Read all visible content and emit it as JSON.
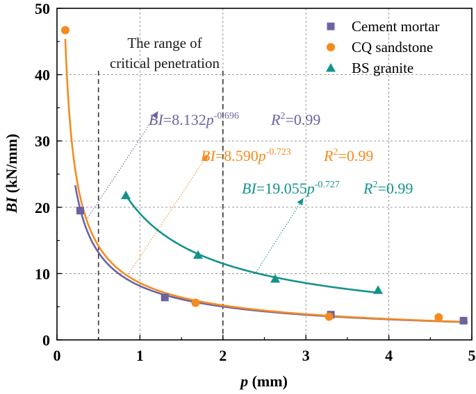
{
  "chart_data": {
    "type": "scatter",
    "xlabel": "p (mm)",
    "xlabel_var": "p",
    "xlabel_unit": " (mm)",
    "ylabel": "BI (kN/mm)",
    "ylabel_var": "BI",
    "ylabel_unit": " (kN/mm)",
    "xlim": [
      0,
      5
    ],
    "ylim": [
      0,
      50
    ],
    "xticks": [
      "0",
      "1",
      "2",
      "3",
      "4",
      "5"
    ],
    "yticks": [
      "0",
      "10",
      "20",
      "30",
      "40",
      "50"
    ],
    "grid": true,
    "legend_position": "top-right",
    "annotation_range_line1": "The range of",
    "annotation_range_line2": "critical penetration",
    "critical_range": [
      0.5,
      2.0
    ],
    "series": [
      {
        "name": "Cement mortar",
        "marker": "square",
        "color": "#6b63a3",
        "points": [
          [
            0.28,
            19.5
          ],
          [
            1.3,
            6.4
          ],
          [
            3.3,
            3.8
          ],
          [
            4.9,
            2.9
          ]
        ],
        "fit": {
          "a": 8.132,
          "b": -0.696,
          "x_range": [
            0.22,
            4.95
          ]
        },
        "equation": {
          "lhs": "BI",
          "eq": "=",
          "coef": "8.132",
          "var": "p",
          "exp": "-0.696",
          "r_label": "R",
          "r_sup": "2",
          "r_val": "=0.99"
        }
      },
      {
        "name": "CQ sandstone",
        "marker": "circle",
        "color": "#f58b1f",
        "points": [
          [
            0.1,
            46.7
          ],
          [
            1.67,
            5.6
          ],
          [
            3.28,
            3.5
          ],
          [
            4.6,
            3.4
          ]
        ],
        "fit": {
          "a": 8.59,
          "b": -0.723,
          "x_range": [
            0.1,
            4.95
          ]
        },
        "equation": {
          "lhs": "BI",
          "eq": "=",
          "coef": "8.590",
          "var": "p",
          "exp": "-0.723",
          "r_label": "R",
          "r_sup": "2",
          "r_val": "=0.99"
        }
      },
      {
        "name": "BS granite",
        "marker": "triangle",
        "color": "#14938a",
        "points": [
          [
            0.83,
            21.8
          ],
          [
            1.7,
            12.8
          ],
          [
            2.63,
            9.2
          ],
          [
            3.87,
            7.5
          ]
        ],
        "fit": {
          "a": 19.055,
          "b": -0.727,
          "x_range": [
            0.83,
            3.87
          ]
        },
        "equation": {
          "lhs": "BI",
          "eq": "=",
          "coef": "19.055",
          "var": "p",
          "exp": "-0.727",
          "r_label": "R",
          "r_sup": "2",
          "r_val": "=0.99"
        }
      }
    ]
  }
}
